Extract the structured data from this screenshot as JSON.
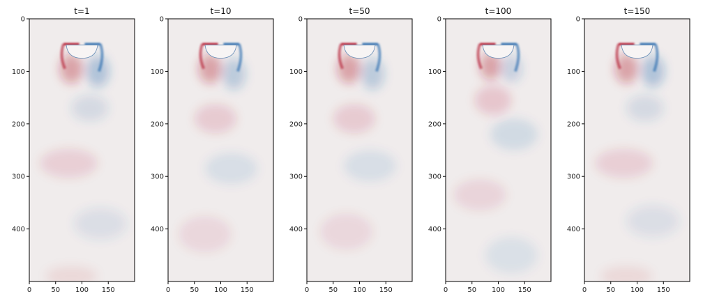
{
  "chart_data": {
    "type": "heatmap",
    "colormap": "diverging red (positive) / blue (negative) on light gray background",
    "colors": {
      "background": "#f0ecec",
      "positive": "#b2182b",
      "negative": "#2166ac"
    },
    "xlim": [
      0,
      200
    ],
    "ylim": [
      500,
      0
    ],
    "x_ticks": [
      "0",
      "50",
      "100",
      "150"
    ],
    "y_ticks": [
      "0",
      "100",
      "200",
      "300",
      "400"
    ],
    "panels": [
      {
        "title": "t=1",
        "vortices": [
          {
            "x": 80,
            "y": 95,
            "sign": 1,
            "strength": 0.35,
            "rx": 22,
            "ry": 28
          },
          {
            "x": 130,
            "y": 100,
            "sign": -1,
            "strength": 0.3,
            "rx": 22,
            "ry": 30
          },
          {
            "x": 115,
            "y": 170,
            "sign": -1,
            "strength": 0.14,
            "rx": 35,
            "ry": 25
          },
          {
            "x": 75,
            "y": 275,
            "sign": 1,
            "strength": 0.12,
            "rx": 55,
            "ry": 28
          },
          {
            "x": 135,
            "y": 390,
            "sign": -1,
            "strength": 0.11,
            "rx": 50,
            "ry": 30
          },
          {
            "x": 80,
            "y": 490,
            "sign": 1,
            "strength": 0.08,
            "rx": 50,
            "ry": 20
          }
        ]
      },
      {
        "title": "t=10",
        "vortices": [
          {
            "x": 80,
            "y": 95,
            "sign": 1,
            "strength": 0.35,
            "rx": 22,
            "ry": 28
          },
          {
            "x": 125,
            "y": 105,
            "sign": -1,
            "strength": 0.25,
            "rx": 22,
            "ry": 30
          },
          {
            "x": 90,
            "y": 190,
            "sign": 1,
            "strength": 0.14,
            "rx": 40,
            "ry": 28
          },
          {
            "x": 120,
            "y": 285,
            "sign": -1,
            "strength": 0.1,
            "rx": 50,
            "ry": 30
          },
          {
            "x": 70,
            "y": 410,
            "sign": 1,
            "strength": 0.09,
            "rx": 50,
            "ry": 35
          }
        ]
      },
      {
        "title": "t=50",
        "vortices": [
          {
            "x": 80,
            "y": 95,
            "sign": 1,
            "strength": 0.35,
            "rx": 22,
            "ry": 28
          },
          {
            "x": 125,
            "y": 105,
            "sign": -1,
            "strength": 0.25,
            "rx": 22,
            "ry": 30
          },
          {
            "x": 90,
            "y": 190,
            "sign": 1,
            "strength": 0.14,
            "rx": 40,
            "ry": 28
          },
          {
            "x": 120,
            "y": 280,
            "sign": -1,
            "strength": 0.1,
            "rx": 50,
            "ry": 30
          },
          {
            "x": 75,
            "y": 405,
            "sign": 1,
            "strength": 0.09,
            "rx": 50,
            "ry": 35
          }
        ]
      },
      {
        "title": "t=100",
        "vortices": [
          {
            "x": 85,
            "y": 90,
            "sign": 1,
            "strength": 0.35,
            "rx": 20,
            "ry": 26
          },
          {
            "x": 125,
            "y": 95,
            "sign": -1,
            "strength": 0.2,
            "rx": 20,
            "ry": 26
          },
          {
            "x": 90,
            "y": 155,
            "sign": 1,
            "strength": 0.16,
            "rx": 35,
            "ry": 28
          },
          {
            "x": 130,
            "y": 220,
            "sign": -1,
            "strength": 0.13,
            "rx": 45,
            "ry": 30
          },
          {
            "x": 65,
            "y": 335,
            "sign": 1,
            "strength": 0.1,
            "rx": 50,
            "ry": 30
          },
          {
            "x": 125,
            "y": 450,
            "sign": -1,
            "strength": 0.09,
            "rx": 50,
            "ry": 35
          }
        ]
      },
      {
        "title": "t=150",
        "vortices": [
          {
            "x": 80,
            "y": 95,
            "sign": 1,
            "strength": 0.35,
            "rx": 22,
            "ry": 28
          },
          {
            "x": 130,
            "y": 100,
            "sign": -1,
            "strength": 0.3,
            "rx": 22,
            "ry": 30
          },
          {
            "x": 115,
            "y": 170,
            "sign": -1,
            "strength": 0.14,
            "rx": 35,
            "ry": 25
          },
          {
            "x": 75,
            "y": 275,
            "sign": 1,
            "strength": 0.12,
            "rx": 55,
            "ry": 28
          },
          {
            "x": 130,
            "y": 385,
            "sign": -1,
            "strength": 0.11,
            "rx": 50,
            "ry": 30
          },
          {
            "x": 80,
            "y": 490,
            "sign": 1,
            "strength": 0.08,
            "rx": 50,
            "ry": 20
          }
        ]
      }
    ]
  }
}
